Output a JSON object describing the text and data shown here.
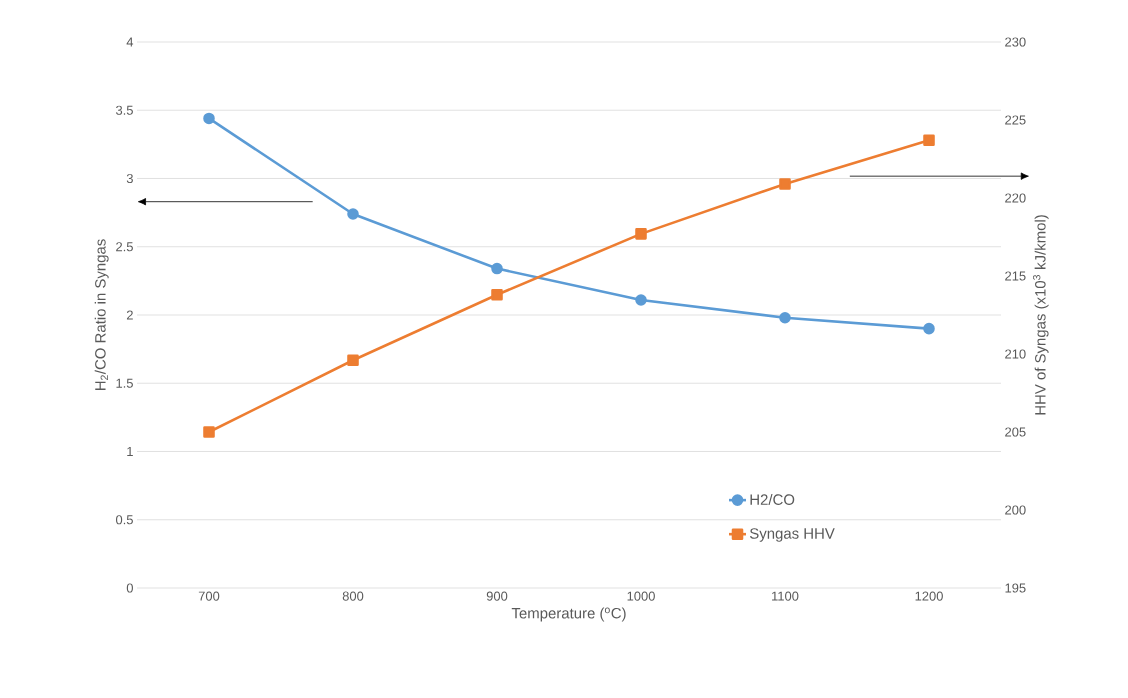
{
  "chart_data": {
    "type": "line",
    "xlabel": "Temperature ($^{o}$C)",
    "ylabel": "H$_{2}$/CO Ratio in Syngas",
    "y2label": "HHV of Syngas (x10$^{3}$ kJ/kmol)",
    "categories": [
      "700",
      "800",
      "900",
      "1000",
      "1100",
      "1200"
    ],
    "series": [
      {
        "name": "H2/CO",
        "color": "#5b9bd5",
        "marker": "circle",
        "values": [
          3.44,
          2.74,
          2.34,
          2.11,
          1.98,
          1.9
        ]
      },
      {
        "name": "Syngas HHV",
        "color": "#ed7d31",
        "marker": "square",
        "axis": "y2",
        "values": [
          205.0,
          209.6,
          213.8,
          217.7,
          220.9,
          223.7
        ]
      }
    ],
    "ylim": [
      0,
      4
    ],
    "yticks": [
      0,
      0.5,
      1,
      1.5,
      2,
      2.5,
      3,
      3.5,
      4
    ],
    "y2lim": [
      195,
      230
    ],
    "y2ticks": [
      195,
      200,
      205,
      210,
      215,
      220,
      225,
      230
    ],
    "grid": "y",
    "legend": "bottom right"
  }
}
